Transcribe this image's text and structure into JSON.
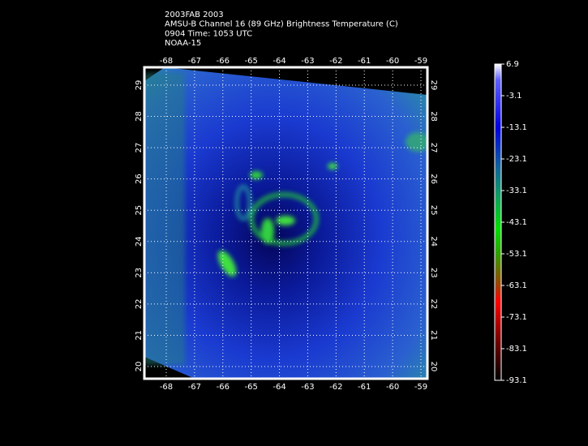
{
  "header": {
    "lines": [
      "2003FAB 2003",
      "AMSU-B Channel 16 (89 GHz) Brightness Temperature (C)",
      "0904 Time: 1053 UTC",
      "NOAA-15"
    ]
  },
  "map": {
    "lon_ticks": [
      -68,
      -67,
      -66,
      -65,
      -64,
      -63,
      -62,
      -61,
      -60,
      -59
    ],
    "lat_ticks": [
      29,
      28,
      27,
      26,
      25,
      24,
      23,
      22,
      21,
      20
    ]
  },
  "colorbar": {
    "labels": [
      6.9,
      -3.1,
      -13.1,
      -23.1,
      -33.1,
      -43.1,
      -53.1,
      -63.1,
      -73.1,
      -83.1,
      -93.1
    ]
  }
}
